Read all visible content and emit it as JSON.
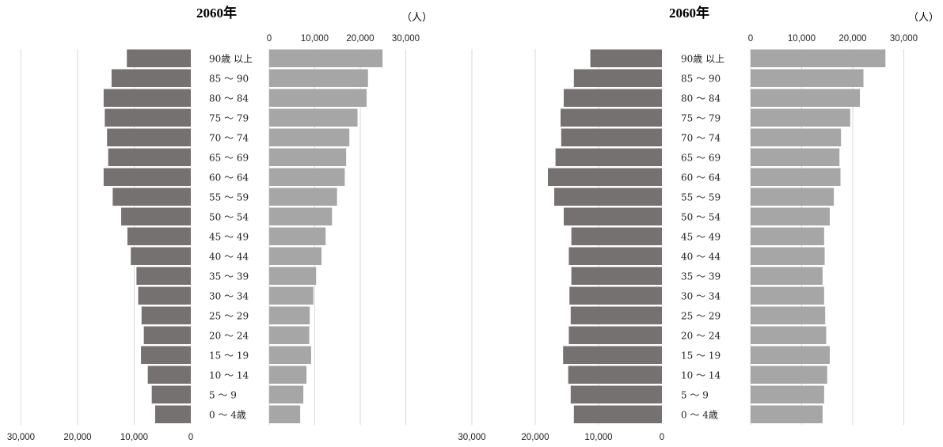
{
  "chart_data": [
    {
      "type": "bar",
      "title": "2060年",
      "unit": "（人）",
      "age_groups": [
        "90歳 以上",
        "85 〜 90",
        "80 〜 84",
        "75 〜 79",
        "70 〜 74",
        "65 〜 69",
        "60 〜 64",
        "55 〜 59",
        "50 〜 54",
        "45 〜 49",
        "40 〜 44",
        "35 〜 39",
        "30 〜 34",
        "25 〜 29",
        "20 〜 24",
        "15 〜 19",
        "10 〜 14",
        "5 〜 9",
        "0 〜 4歳"
      ],
      "right_ticks": [
        "0",
        "10,000",
        "20,000",
        "30,000"
      ],
      "left_ticks": [
        "30,000",
        "20,000",
        "10,000",
        "0"
      ],
      "xlim": [
        0,
        30000
      ],
      "grid": true,
      "colors": {
        "left": "#767171",
        "right": "#a6a6a6",
        "grid": "#d9d9d9"
      },
      "series": [
        {
          "side": "left",
          "values": [
            11300,
            14000,
            15400,
            15200,
            14800,
            14600,
            15400,
            13800,
            12300,
            11200,
            10600,
            9600,
            9300,
            8700,
            8300,
            8800,
            7600,
            6900,
            6300
          ]
        },
        {
          "side": "right",
          "values": [
            24900,
            21700,
            21400,
            19400,
            17600,
            16900,
            16600,
            14900,
            13800,
            12400,
            11500,
            10300,
            9700,
            8900,
            8800,
            9200,
            8200,
            7500,
            6800
          ]
        }
      ]
    },
    {
      "type": "bar",
      "title": "2060年",
      "unit": "（人）",
      "age_groups": [
        "90歳 以上",
        "85 〜 90",
        "80 〜 84",
        "75 〜 79",
        "70 〜 74",
        "65 〜 69",
        "60 〜 64",
        "55 〜 59",
        "50 〜 54",
        "45 〜 49",
        "40 〜 44",
        "35 〜 39",
        "30 〜 34",
        "25 〜 29",
        "20 〜 24",
        "15 〜 19",
        "10 〜 14",
        "5 〜 9",
        "0 〜 4歳"
      ],
      "right_ticks": [
        "0",
        "10,000",
        "20,000",
        "30,000"
      ],
      "left_ticks": [
        "30,000",
        "20,000",
        "10,000",
        "0"
      ],
      "xlim": [
        0,
        30000
      ],
      "grid": true,
      "colors": {
        "left": "#767171",
        "right": "#a6a6a6",
        "grid": "#d9d9d9"
      },
      "series": [
        {
          "side": "left",
          "values": [
            11300,
            13900,
            15500,
            16000,
            15900,
            16800,
            18000,
            17000,
            15500,
            14300,
            14700,
            14300,
            14600,
            14400,
            14700,
            15600,
            14800,
            14400,
            13900
          ]
        },
        {
          "side": "right",
          "values": [
            26400,
            22100,
            21400,
            19500,
            17700,
            17400,
            17600,
            16300,
            15500,
            14400,
            14500,
            14100,
            14400,
            14600,
            14800,
            15500,
            15000,
            14400,
            14100
          ]
        }
      ]
    }
  ]
}
